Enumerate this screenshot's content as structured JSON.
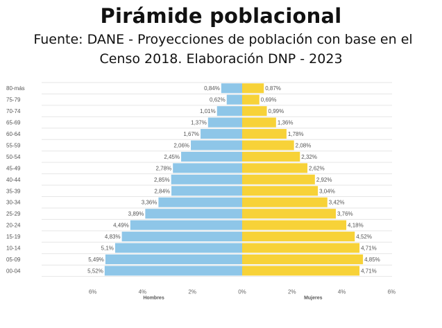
{
  "chart_data": {
    "type": "bar",
    "title": "Pirámide poblacional",
    "subtitle_line1": "Fuente: DANE - Proyecciones de población con base en el",
    "subtitle_line2": "Censo 2018. Elaboración DNP - 2023",
    "categories": [
      "80-más",
      "75-79",
      "70-74",
      "65-69",
      "60-64",
      "55-59",
      "50-54",
      "45-49",
      "40-44",
      "35-39",
      "30-34",
      "25-29",
      "20-24",
      "15-19",
      "10-14",
      "05-09",
      "00-04"
    ],
    "series": [
      {
        "name": "Hombres",
        "color": "#8ec6e8",
        "values": [
          0.84,
          0.62,
          1.01,
          1.37,
          1.67,
          2.06,
          2.45,
          2.78,
          2.85,
          2.84,
          3.36,
          3.89,
          4.49,
          4.83,
          5.1,
          5.49,
          5.52
        ],
        "labels": [
          "0,84%",
          "0,62%",
          "1,01%",
          "1,37%",
          "1,67%",
          "2,06%",
          "2,45%",
          "2,78%",
          "2,85%",
          "2,84%",
          "3,36%",
          "3,89%",
          "4,49%",
          "4,83%",
          "5,1%",
          "5,49%",
          "5,52%"
        ]
      },
      {
        "name": "Mujeres",
        "color": "#f7d238",
        "values": [
          0.87,
          0.69,
          0.99,
          1.36,
          1.78,
          2.08,
          2.32,
          2.62,
          2.92,
          3.04,
          3.42,
          3.76,
          4.18,
          4.52,
          4.71,
          4.85,
          4.71
        ],
        "labels": [
          "0,87%",
          "0,69%",
          "0,99%",
          "1,36%",
          "1,78%",
          "2,08%",
          "2,32%",
          "2,62%",
          "2,92%",
          "3,04%",
          "3,42%",
          "3,76%",
          "4,18%",
          "4,52%",
          "4,71%",
          "4,85%",
          "4,71%"
        ]
      }
    ],
    "xlim": [
      -6,
      6
    ],
    "xticks": [
      -6,
      -4,
      -2,
      0,
      2,
      4,
      6
    ],
    "xtick_labels": [
      "6%",
      "4%",
      "2%",
      "0%",
      "2%",
      "4%",
      "6%"
    ],
    "xlabel_left": "Hombres",
    "xlabel_right": "Mujeres",
    "grid": true,
    "legend": "none"
  }
}
